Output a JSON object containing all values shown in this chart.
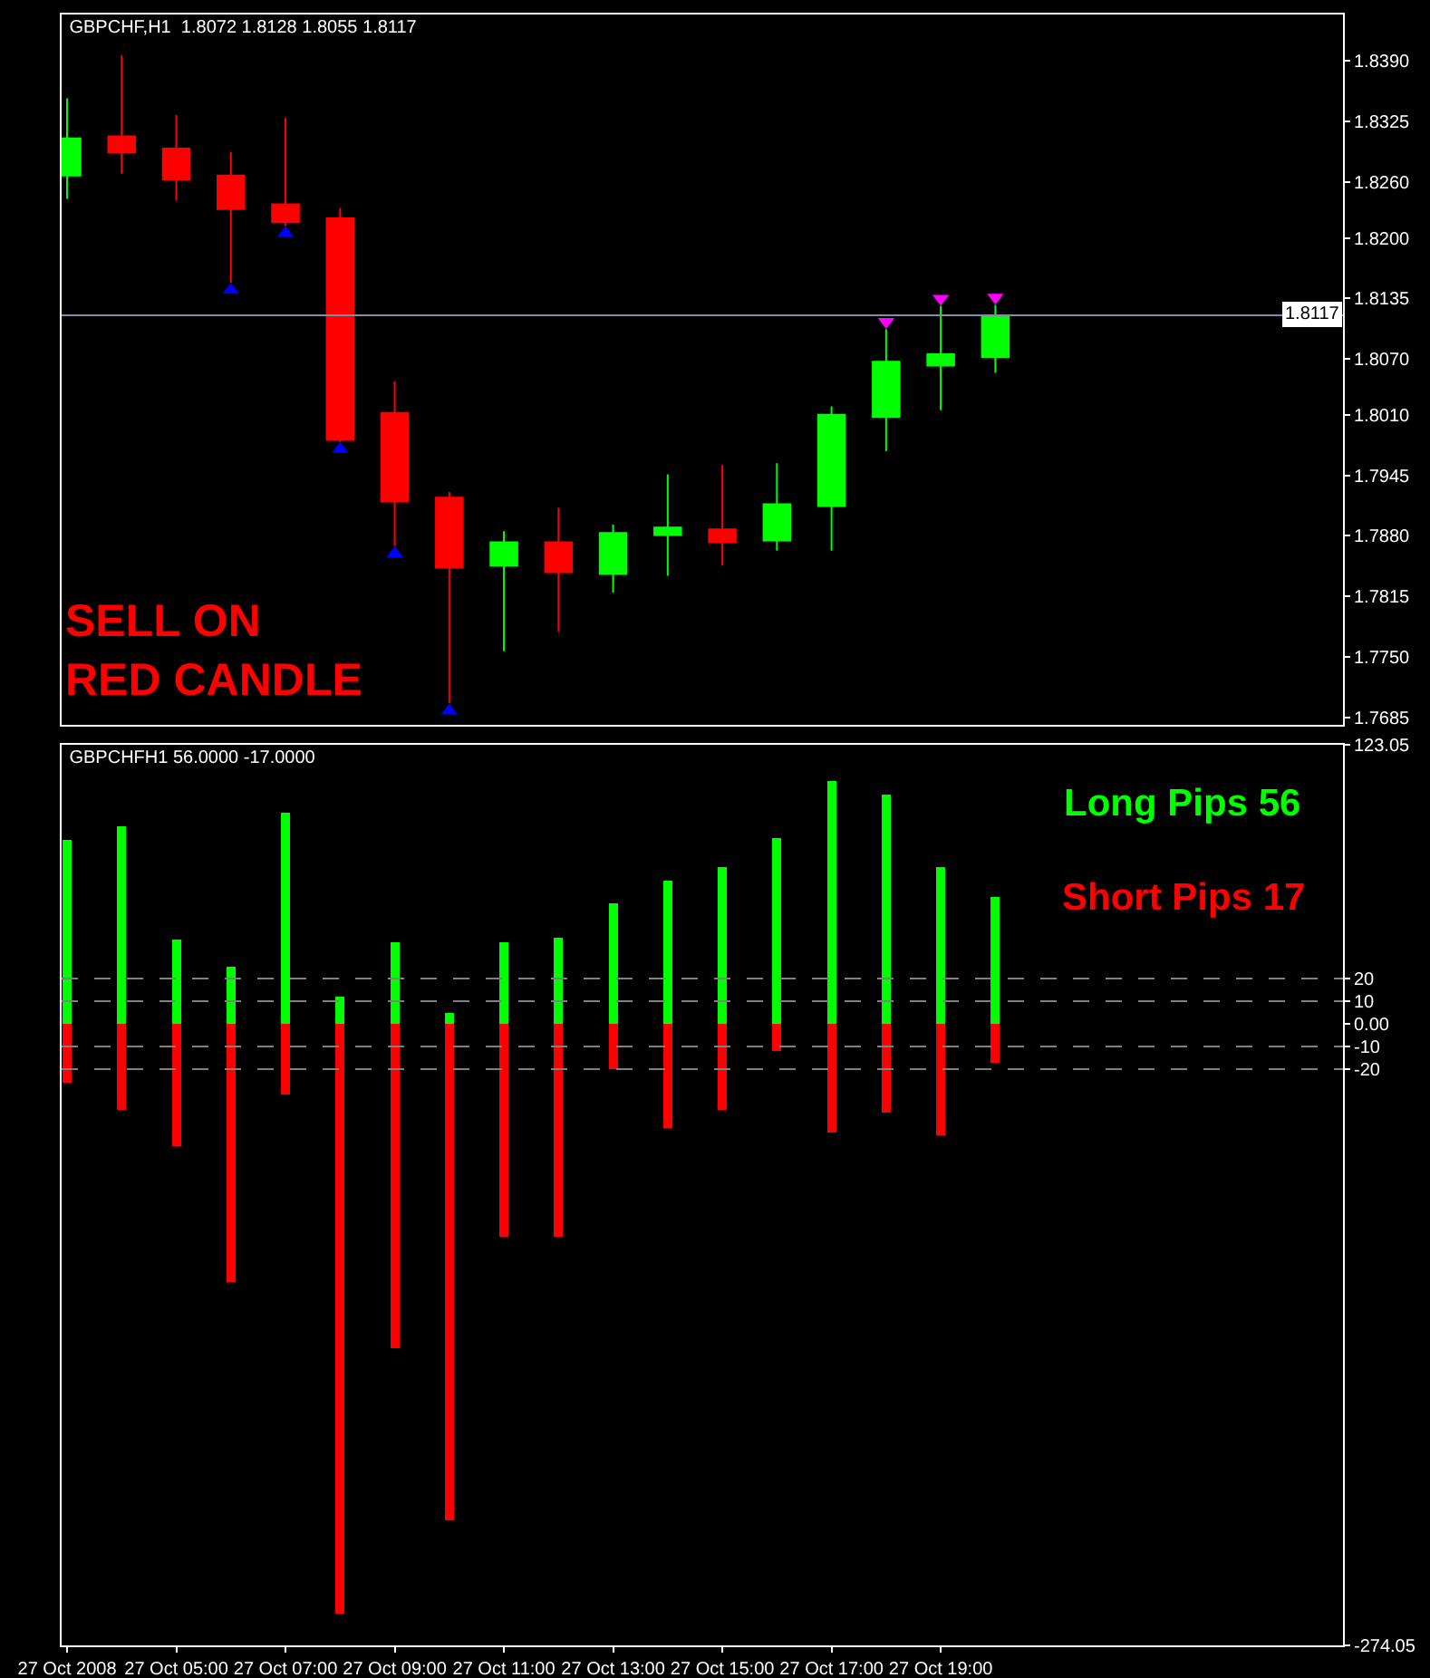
{
  "chart_data": [
    {
      "type": "candlestick",
      "title": "GBPCHF,H1  1.8072 1.8128 1.8055 1.8117",
      "x": [
        "2008-10-27T03:00",
        "2008-10-27T04:00",
        "2008-10-27T05:00",
        "2008-10-27T06:00",
        "2008-10-27T07:00",
        "2008-10-27T08:00",
        "2008-10-27T09:00",
        "2008-10-27T10:00",
        "2008-10-27T11:00",
        "2008-10-27T12:00",
        "2008-10-27T13:00",
        "2008-10-27T14:00",
        "2008-10-27T15:00",
        "2008-10-27T16:00",
        "2008-10-27T17:00",
        "2008-10-27T18:00",
        "2008-10-27T19:00",
        "2008-10-27T20:00"
      ],
      "ohlc": [
        [
          1.8267,
          1.835,
          1.8242,
          1.8307
        ],
        [
          1.8309,
          1.8396,
          1.8269,
          1.8292
        ],
        [
          1.8296,
          1.8332,
          1.824,
          1.8263
        ],
        [
          1.8267,
          1.8292,
          1.8152,
          1.8231
        ],
        [
          1.8236,
          1.8329,
          1.8213,
          1.8217
        ],
        [
          1.8221,
          1.8232,
          1.7981,
          1.7983
        ],
        [
          1.8012,
          1.8046,
          1.7869,
          1.7917
        ],
        [
          1.7921,
          1.7927,
          1.77,
          1.7846
        ],
        [
          1.7848,
          1.7885,
          1.7756,
          1.7873
        ],
        [
          1.7873,
          1.791,
          1.7777,
          1.7841
        ],
        [
          1.7839,
          1.7892,
          1.7819,
          1.7883
        ],
        [
          1.7881,
          1.7946,
          1.7837,
          1.7889
        ],
        [
          1.7887,
          1.7956,
          1.7848,
          1.7873
        ],
        [
          1.7875,
          1.7958,
          1.7864,
          1.7914
        ],
        [
          1.7912,
          1.8019,
          1.7864,
          1.801
        ],
        [
          1.8008,
          1.8102,
          1.7971,
          1.8067
        ],
        [
          1.8063,
          1.8127,
          1.8015,
          1.8075
        ],
        [
          1.8072,
          1.8128,
          1.8055,
          1.8117
        ]
      ],
      "colors": [
        "#00ff00",
        "#ff0000",
        "#ff0000",
        "#ff0000",
        "#ff0000",
        "#ff0000",
        "#ff0000",
        "#ff0000",
        "#00ff00",
        "#ff0000",
        "#00ff00",
        "#00ff00",
        "#ff0000",
        "#00ff00",
        "#00ff00",
        "#00ff00",
        "#00ff00",
        "#00ff00"
      ],
      "series": [
        {
          "type": "scatter",
          "color": "#0000ff",
          "marker": "triangle",
          "x": [
            "2008-10-27T06:00",
            "2008-10-27T07:00",
            "2008-10-27T08:00",
            "2008-10-27T09:00",
            "2008-10-27T10:00"
          ],
          "values": [
            1.8144,
            1.8205,
            1.7973,
            1.7861,
            1.7692
          ]
        },
        {
          "type": "scatter",
          "color": "#ff00ff",
          "marker": "triangle",
          "x": [
            "2008-10-27T18:00",
            "2008-10-27T19:00",
            "2008-10-27T20:00"
          ],
          "values": [
            1.811,
            1.8135,
            1.8136
          ]
        }
      ],
      "annotations": [
        "SELL ON RED CANDLE"
      ],
      "ref_lines": [
        {
          "axis": "y",
          "value": 1.8117,
          "label": "1.8117",
          "color": "#7f8fa6",
          "line_style": "solid"
        }
      ],
      "xlim": [
        "2008-10-27T02:54",
        "2008-10-28T02:22"
      ],
      "ylim": [
        1.7677,
        1.844
      ],
      "yticks": [
        {
          "value": 1.839,
          "label": "1.8390"
        },
        1.8325,
        {
          "value": 1.826,
          "label": "1.8260"
        },
        {
          "value": 1.82,
          "label": "1.8200"
        },
        1.8135,
        {
          "value": 1.807,
          "label": "1.8070"
        },
        {
          "value": 1.801,
          "label": "1.8010"
        },
        1.7945,
        {
          "value": 1.788,
          "label": "1.7880"
        },
        1.7815,
        {
          "value": 1.775,
          "label": "1.7750"
        },
        1.7685
      ],
      "tick_labels": "y",
      "grid": false
    },
    {
      "type": "bar",
      "title": "GBPCHFH1 56.0000 -17.0000",
      "stacked": true,
      "x": [
        "2008-10-27T03:00",
        "2008-10-27T04:00",
        "2008-10-27T05:00",
        "2008-10-27T06:00",
        "2008-10-27T07:00",
        "2008-10-27T08:00",
        "2008-10-27T09:00",
        "2008-10-27T10:00",
        "2008-10-27T11:00",
        "2008-10-27T12:00",
        "2008-10-27T13:00",
        "2008-10-27T14:00",
        "2008-10-27T15:00",
        "2008-10-27T16:00",
        "2008-10-27T17:00",
        "2008-10-27T18:00",
        "2008-10-27T19:00",
        "2008-10-27T20:00"
      ],
      "series": [
        {
          "color": "#00ff00",
          "values": [
            81,
            87,
            37,
            25,
            93,
            12,
            36,
            5,
            36,
            38,
            53,
            63,
            69,
            82,
            107,
            101,
            69,
            56
          ]
        },
        {
          "color": "#ff0000",
          "values": [
            -26,
            -38,
            -54,
            -114,
            -31,
            -260,
            -143,
            -219,
            -94,
            -94,
            -20,
            -46,
            -38,
            -12,
            -48,
            -39,
            -49,
            -17
          ]
        }
      ],
      "annotations": [
        "Long Pips 56",
        "Short Pips 17"
      ],
      "ref_lines": [
        {
          "axis": "y",
          "value": 20,
          "color": "#808080",
          "line_style": "dashed"
        },
        {
          "axis": "y",
          "value": 10,
          "color": "#808080",
          "line_style": "dashed"
        },
        {
          "axis": "y",
          "value": -10,
          "color": "#808080",
          "line_style": "dashed"
        },
        {
          "axis": "y",
          "value": -20,
          "color": "#808080",
          "line_style": "dashed"
        }
      ],
      "xlim": [
        "2008-10-27T02:54",
        "2008-10-28T02:22"
      ],
      "xticks": [
        {
          "value": "2008-10-27T03:00",
          "label": "27 Oct 2008"
        },
        {
          "value": "2008-10-27T05:00",
          "label": "27 Oct 05:00"
        },
        {
          "value": "2008-10-27T07:00",
          "label": "27 Oct 07:00"
        },
        {
          "value": "2008-10-27T09:00",
          "label": "27 Oct 09:00"
        },
        {
          "value": "2008-10-27T11:00",
          "label": "27 Oct 11:00"
        },
        {
          "value": "2008-10-27T13:00",
          "label": "27 Oct 13:00"
        },
        {
          "value": "2008-10-27T15:00",
          "label": "27 Oct 15:00"
        },
        {
          "value": "2008-10-27T17:00",
          "label": "27 Oct 17:00"
        },
        {
          "value": "2008-10-27T19:00",
          "label": "27 Oct 19:00"
        }
      ],
      "ylim": [
        -274.05,
        123.05
      ],
      "yticks": [
        123.05,
        20,
        10,
        {
          "value": 0,
          "label": "0.00"
        },
        -10,
        -20,
        -274.05
      ],
      "grid": false
    }
  ]
}
